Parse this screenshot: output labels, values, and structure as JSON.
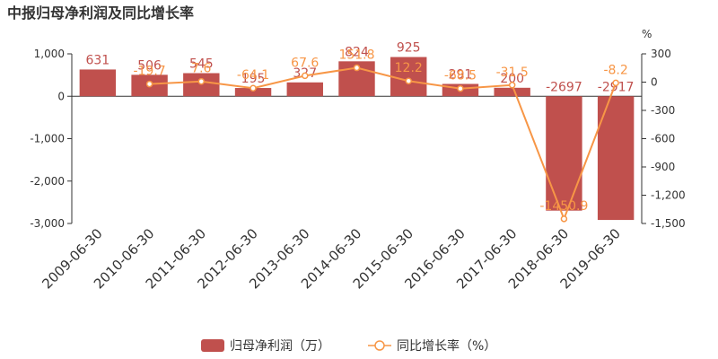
{
  "chart_data": {
    "type": "bar",
    "title": "中报归母净利润及同比增长率",
    "categories": [
      "2009-06-30",
      "2010-06-30",
      "2011-06-30",
      "2012-06-30",
      "2013-06-30",
      "2014-06-30",
      "2015-06-30",
      "2016-06-30",
      "2017-06-30",
      "2018-06-30",
      "2019-06-30"
    ],
    "series": [
      {
        "name": "归母净利润（万）",
        "kind": "bar",
        "axis": "left",
        "color": "#c0504d",
        "values": [
          631,
          506,
          545,
          195,
          327,
          824,
          925,
          291,
          200,
          -2697,
          -2917
        ],
        "labels": [
          "631",
          "506",
          "545",
          "195",
          "327",
          "824",
          "925",
          "291",
          "200",
          "-2697",
          "-2917"
        ]
      },
      {
        "name": "同比增长率（%）",
        "kind": "line",
        "axis": "right",
        "color": "#f79646",
        "values": [
          null,
          -19.7,
          7.6,
          -64.1,
          67.6,
          151.8,
          12.2,
          -68.5,
          -31.5,
          -1450.9,
          -8.2
        ],
        "labels": [
          "",
          "-19.7",
          "7.6",
          "-64.1",
          "67.6",
          "151.8",
          "12.2",
          "-68.5",
          "-31.5",
          "-1450.9",
          "-8.2"
        ]
      }
    ],
    "y_left": {
      "min": -3000,
      "max": 1000,
      "ticks": [
        1000,
        0,
        -1000,
        -2000,
        -3000
      ],
      "tick_labels": [
        "1,000",
        "0",
        "-1,000",
        "-2,000",
        "-3,000"
      ]
    },
    "y_right": {
      "min": -1500,
      "max": 300,
      "ticks": [
        300,
        0,
        -300,
        -600,
        -900,
        -1200,
        -1500
      ],
      "tick_labels": [
        "300",
        "0",
        "-300",
        "-600",
        "-900",
        "-1,200",
        "-1,500"
      ],
      "unit": "%"
    },
    "grid": false,
    "legend_position": "bottom"
  }
}
